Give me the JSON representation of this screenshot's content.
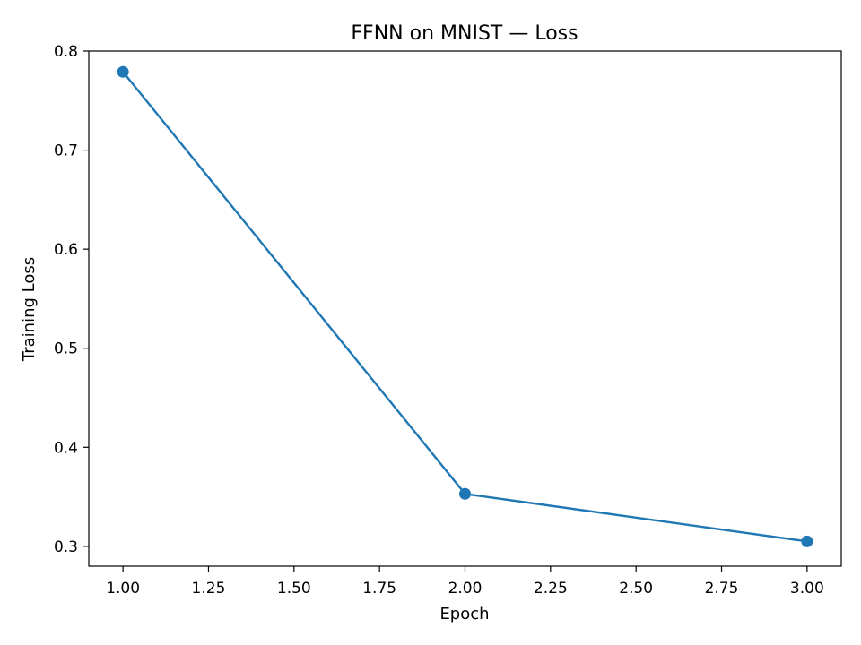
{
  "chart_data": {
    "type": "line",
    "title": "FFNN on MNIST — Loss",
    "xlabel": "Epoch",
    "ylabel": "Training Loss",
    "xlim": [
      0.9,
      3.1
    ],
    "ylim": [
      0.28,
      0.8
    ],
    "x_ticks": [
      1.0,
      1.25,
      1.5,
      1.75,
      2.0,
      2.25,
      2.5,
      2.75,
      3.0
    ],
    "x_tick_labels": [
      "1.00",
      "1.25",
      "1.50",
      "1.75",
      "2.00",
      "2.25",
      "2.50",
      "2.75",
      "3.00"
    ],
    "y_ticks": [
      0.3,
      0.4,
      0.5,
      0.6,
      0.7,
      0.8
    ],
    "y_tick_labels": [
      "0.3",
      "0.4",
      "0.5",
      "0.6",
      "0.7",
      "0.8"
    ],
    "grid": false,
    "legend": "none",
    "series": [
      {
        "color": "#1f77b4",
        "marker": "circle",
        "x": [
          1,
          2,
          3
        ],
        "y": [
          0.779,
          0.353,
          0.305
        ]
      }
    ]
  }
}
